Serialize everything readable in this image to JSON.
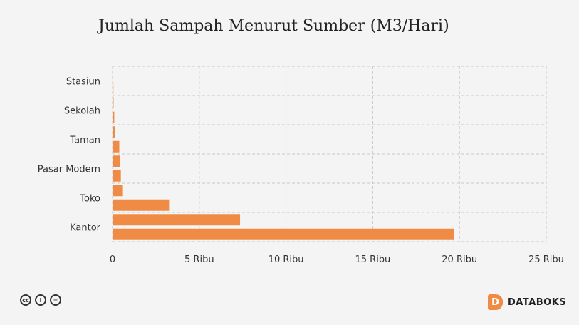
{
  "chart_data": {
    "type": "bar",
    "orientation": "horizontal",
    "title": "Jumlah Sampah Menurut Sumber (M3/Hari)",
    "xlabel": "",
    "ylabel": "",
    "xlim": [
      0,
      25000
    ],
    "x_ticks": [
      {
        "value": 0,
        "label": "0"
      },
      {
        "value": 5000,
        "label": "5 Ribu"
      },
      {
        "value": 10000,
        "label": "10 Ribu"
      },
      {
        "value": 15000,
        "label": "15 Ribu"
      },
      {
        "value": 20000,
        "label": "20 Ribu"
      },
      {
        "value": 25000,
        "label": "25 Ribu"
      }
    ],
    "categories": [
      "Stasiun",
      "",
      "Sekolah",
      "",
      "Taman",
      "",
      "Pasar Modern",
      "",
      "Toko",
      "",
      "Kantor",
      ""
    ],
    "values": [
      20,
      50,
      60,
      100,
      150,
      390,
      450,
      480,
      600,
      3300,
      7350,
      19700
    ],
    "bar_color": "#f08b45",
    "grid": true
  },
  "footer": {
    "license_icons": [
      "cc-icon",
      "by-icon",
      "nd-icon"
    ],
    "license_glyphs": [
      "cc",
      "i",
      "="
    ],
    "brand": "DATABOKS",
    "brand_mark": "D"
  }
}
